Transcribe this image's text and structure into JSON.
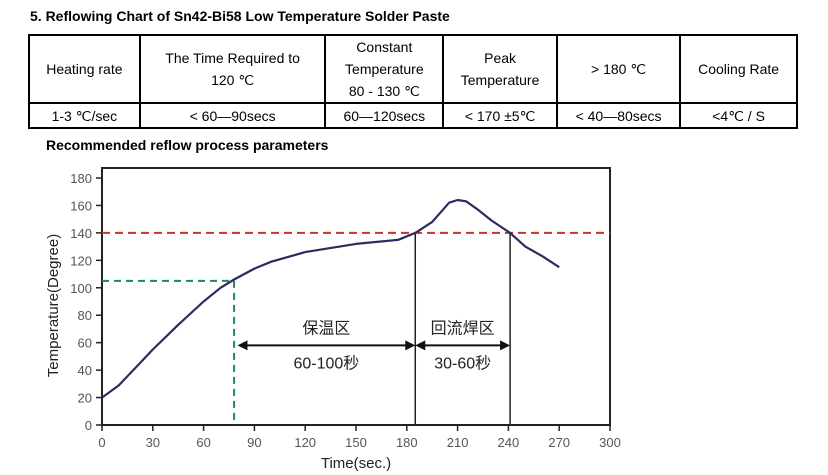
{
  "title": "5. Reflowing Chart of Sn42-Bi58 Low Temperature Solder Paste",
  "table": {
    "headers": [
      "Heating rate",
      [
        "The Time Required to",
        "120 ℃"
      ],
      [
        "Constant",
        "Temperature",
        "80 - 130 ℃"
      ],
      [
        "Peak",
        "Temperature"
      ],
      "> 180 ℃",
      "Cooling Rate"
    ],
    "values": [
      "1-3 ℃/sec",
      "< 60—90secs",
      "60—120secs",
      "< 170 ±5℃",
      "< 40—80secs",
      "<4℃ / S"
    ]
  },
  "subtitle": "Recommended reflow process parameters",
  "chart_data": {
    "type": "line",
    "xlabel": "Time(sec.)",
    "ylabel": "Temperature(Degree)",
    "xlim": [
      0,
      300
    ],
    "ylim": [
      0,
      180
    ],
    "xticks": [
      0,
      30,
      60,
      90,
      120,
      150,
      180,
      210,
      240,
      270,
      300
    ],
    "yticks": [
      0,
      20,
      40,
      60,
      80,
      100,
      120,
      140,
      160,
      180
    ],
    "grid": false,
    "series": [
      {
        "color": "#2e2a5e",
        "points": [
          [
            0,
            20
          ],
          [
            10,
            29
          ],
          [
            20,
            42
          ],
          [
            30,
            55
          ],
          [
            45,
            73
          ],
          [
            60,
            90
          ],
          [
            70,
            100
          ],
          [
            78,
            106
          ],
          [
            90,
            114
          ],
          [
            100,
            119
          ],
          [
            120,
            126
          ],
          [
            150,
            132
          ],
          [
            175,
            135
          ],
          [
            185,
            140
          ],
          [
            195,
            148
          ],
          [
            200,
            155
          ],
          [
            205,
            162
          ],
          [
            210,
            164
          ],
          [
            215,
            163
          ],
          [
            222,
            157
          ],
          [
            230,
            149
          ],
          [
            241,
            140
          ],
          [
            250,
            130
          ],
          [
            260,
            123
          ],
          [
            270,
            115
          ]
        ]
      }
    ],
    "reference_lines": [
      {
        "type": "horizontal",
        "y": 140,
        "style": "dashed",
        "color": "#c0392b"
      },
      {
        "type": "guide",
        "x": 78,
        "y": 105,
        "style": "dashed",
        "color": "#1e8a5a"
      },
      {
        "type": "vertical",
        "x": 185,
        "y_to": 140,
        "style": "solid",
        "color": "#222"
      },
      {
        "type": "vertical",
        "x": 241,
        "y_to": 140,
        "style": "solid",
        "color": "#222"
      }
    ],
    "annotations": [
      {
        "label": "保温区",
        "range": "60-100秒",
        "from": 80,
        "to": 185,
        "y": 58
      },
      {
        "label": "回流焊区",
        "range": "30-60秒",
        "from": 185,
        "to": 241,
        "y": 58
      }
    ]
  }
}
